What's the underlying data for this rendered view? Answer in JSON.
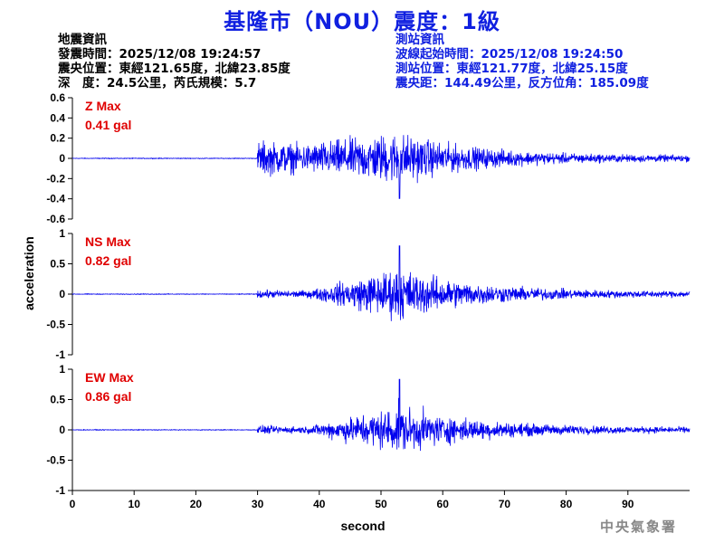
{
  "header": {
    "title": "基隆市（NOU）震度：1級"
  },
  "quake_info": {
    "heading": "地震資訊",
    "time": "發震時間：2025/12/08 19:24:57",
    "location": "震央位置：東經121.65度，北緯23.85度",
    "depth_mag": "深　度：24.5公里，芮氏規模：5.7"
  },
  "station_info": {
    "heading": "測站資訊",
    "wave_start": "波線起始時間：2025/12/08 19:24:50",
    "location": "測站位置：東經121.77度，北緯25.15度",
    "distance": "震央距：144.49公里，反方位角：185.09度"
  },
  "footer": {
    "agency": "中央氣象署"
  },
  "colors": {
    "title": "#1020e0",
    "trace": "#0000ee",
    "max_label": "#e00000"
  },
  "chart_data": {
    "type": "line",
    "xlabel": "second",
    "ylabel": "acceleration",
    "xlim": [
      0,
      100
    ],
    "xticks": [
      "0",
      "10",
      "20",
      "30",
      "40",
      "50",
      "60",
      "70",
      "80",
      "90"
    ],
    "grid": false,
    "p_arrival_s": 30,
    "peak_s": 53,
    "panels": [
      {
        "component": "Z",
        "max_label": "Z Max",
        "max_value": "0.41 gal",
        "ylim": [
          -0.6,
          0.6
        ],
        "yticks": [
          "0.6",
          "0.4",
          "0.2",
          "0",
          "-0.2",
          "-0.4",
          "-0.6"
        ],
        "peak_amplitude": 0.41,
        "p_envelope": 0.25,
        "peak_envelope": 0.36,
        "tail_envelope": 0.04
      },
      {
        "component": "NS",
        "max_label": "NS Max",
        "max_value": "0.82 gal",
        "ylim": [
          -1,
          1
        ],
        "yticks": [
          "1",
          "0.5",
          "0",
          "-0.5",
          "-1"
        ],
        "peak_amplitude": 0.82,
        "p_envelope": 0.1,
        "peak_envelope": 0.6,
        "tail_envelope": 0.06
      },
      {
        "component": "EW",
        "max_label": "EW Max",
        "max_value": "0.86 gal",
        "ylim": [
          -1,
          1
        ],
        "yticks": [
          "1",
          "0.5",
          "0",
          "-0.5",
          "-1"
        ],
        "peak_amplitude": 0.86,
        "p_envelope": 0.1,
        "peak_envelope": 0.55,
        "tail_envelope": 0.06
      }
    ]
  }
}
